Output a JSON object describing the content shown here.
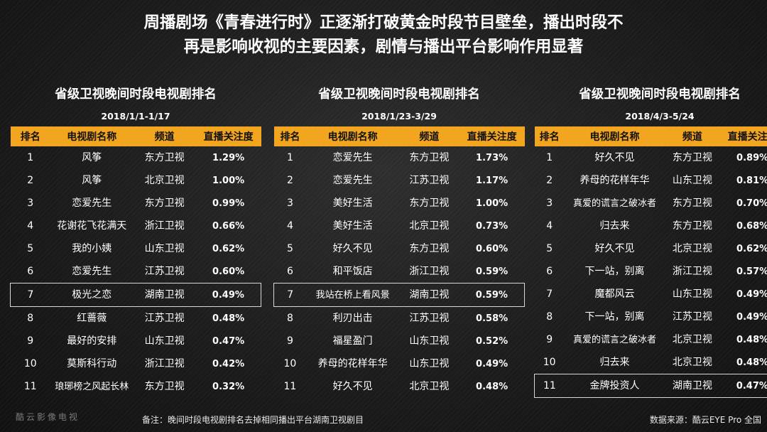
{
  "title": {
    "line1": "周播剧场《青春进行时》正逐渐打破黄金时段节目壁垒，播出时段不",
    "line2": "再是影响收视的主要因素，剧情与播出平台影响作用显著"
  },
  "columns": [
    "排名",
    "电视剧名称",
    "频道",
    "直播关注度"
  ],
  "panels": [
    {
      "title": "省级卫视晚间时段电视剧排名",
      "date": "2018/1/1-1/17",
      "highlight": 6,
      "rows": [
        {
          "rank": "1",
          "name": "风筝",
          "channel": "东方卫视",
          "value": "1.29%"
        },
        {
          "rank": "2",
          "name": "风筝",
          "channel": "北京卫视",
          "value": "1.00%"
        },
        {
          "rank": "3",
          "name": "恋爱先生",
          "channel": "东方卫视",
          "value": "0.99%"
        },
        {
          "rank": "4",
          "name": "花谢花飞花满天",
          "channel": "浙江卫视",
          "value": "0.66%"
        },
        {
          "rank": "5",
          "name": "我的小姨",
          "channel": "山东卫视",
          "value": "0.62%"
        },
        {
          "rank": "6",
          "name": "恋爱先生",
          "channel": "江苏卫视",
          "value": "0.60%"
        },
        {
          "rank": "7",
          "name": "极光之恋",
          "channel": "湖南卫视",
          "value": "0.49%"
        },
        {
          "rank": "8",
          "name": "红蔷薇",
          "channel": "江苏卫视",
          "value": "0.48%"
        },
        {
          "rank": "9",
          "name": "最好的安排",
          "channel": "山东卫视",
          "value": "0.47%"
        },
        {
          "rank": "10",
          "name": "莫斯科行动",
          "channel": "浙江卫视",
          "value": "0.42%"
        },
        {
          "rank": "11",
          "name": "琅琊榜之风起长林",
          "channel": "东方卫视",
          "value": "0.32%"
        }
      ]
    },
    {
      "title": "省级卫视晚间时段电视剧排名",
      "date": "2018/1/23-3/29",
      "highlight": 6,
      "rows": [
        {
          "rank": "1",
          "name": "恋爱先生",
          "channel": "东方卫视",
          "value": "1.73%"
        },
        {
          "rank": "2",
          "name": "恋爱先生",
          "channel": "江苏卫视",
          "value": "1.17%"
        },
        {
          "rank": "3",
          "name": "美好生活",
          "channel": "东方卫视",
          "value": "1.00%"
        },
        {
          "rank": "4",
          "name": "美好生活",
          "channel": "北京卫视",
          "value": "0.73%"
        },
        {
          "rank": "5",
          "name": "好久不见",
          "channel": "东方卫视",
          "value": "0.60%"
        },
        {
          "rank": "6",
          "name": "和平饭店",
          "channel": "浙江卫视",
          "value": "0.59%"
        },
        {
          "rank": "7",
          "name": "我站在桥上看风景",
          "channel": "湖南卫视",
          "value": "0.59%"
        },
        {
          "rank": "8",
          "name": "利刃出击",
          "channel": "江苏卫视",
          "value": "0.58%"
        },
        {
          "rank": "9",
          "name": "福星盈门",
          "channel": "山东卫视",
          "value": "0.52%"
        },
        {
          "rank": "10",
          "name": "养母的花样年华",
          "channel": "山东卫视",
          "value": "0.49%"
        },
        {
          "rank": "11",
          "name": "好久不见",
          "channel": "北京卫视",
          "value": "0.48%"
        }
      ]
    },
    {
      "title": "省级卫视晚间时段电视剧排名",
      "date": "2018/4/3-5/24",
      "highlight": 10,
      "rows": [
        {
          "rank": "1",
          "name": "好久不见",
          "channel": "东方卫视",
          "value": "0.89%"
        },
        {
          "rank": "2",
          "name": "养母的花样年华",
          "channel": "山东卫视",
          "value": "0.81%"
        },
        {
          "rank": "3",
          "name": "真爱的谎言之破冰者",
          "channel": "东方卫视",
          "value": "0.70%"
        },
        {
          "rank": "4",
          "name": "归去来",
          "channel": "东方卫视",
          "value": "0.68%"
        },
        {
          "rank": "5",
          "name": "好久不见",
          "channel": "北京卫视",
          "value": "0.62%"
        },
        {
          "rank": "6",
          "name": "下一站，别离",
          "channel": "浙江卫视",
          "value": "0.57%"
        },
        {
          "rank": "7",
          "name": "魔都风云",
          "channel": "山东卫视",
          "value": "0.49%"
        },
        {
          "rank": "8",
          "name": "下一站，别离",
          "channel": "江苏卫视",
          "value": "0.49%"
        },
        {
          "rank": "9",
          "name": "真爱的谎言之破冰者",
          "channel": "北京卫视",
          "value": "0.48%"
        },
        {
          "rank": "10",
          "name": "归去来",
          "channel": "北京卫视",
          "value": "0.48%"
        },
        {
          "rank": "11",
          "name": "金牌投资人",
          "channel": "湖南卫视",
          "value": "0.47%"
        }
      ]
    }
  ],
  "watermark": "酷云影像电视",
  "note": "备注：晚间时段电视剧排名去掉相同播出平台湖南卫视剧目",
  "source": "数据来源：酷云EYE Pro  全国",
  "colors": {
    "header_bg": "#f2a51f",
    "highlight_border": "#d8d8d8",
    "background": "#1c1c1c"
  }
}
